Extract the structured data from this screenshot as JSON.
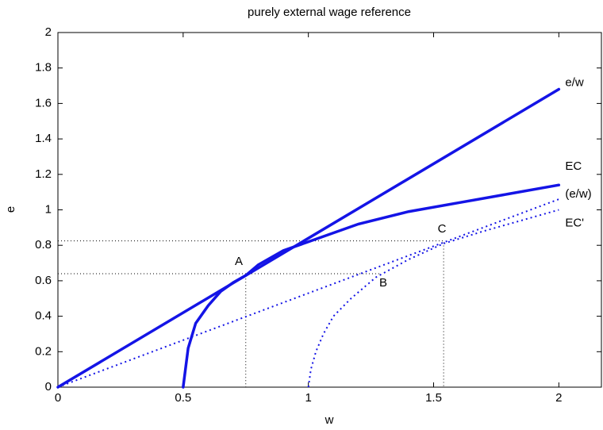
{
  "chart_data": {
    "type": "line",
    "title": "purely external wage reference",
    "xlabel": "w",
    "ylabel": "e",
    "xlim": [
      0,
      2.17
    ],
    "ylim": [
      0,
      2
    ],
    "xticks": [
      0,
      0.5,
      1,
      1.5,
      2
    ],
    "yticks": [
      0,
      0.2,
      0.4,
      0.6,
      0.8,
      1,
      1.2,
      1.4,
      1.6,
      1.8,
      2
    ],
    "grid": false,
    "series": [
      {
        "name": "e/w",
        "color": "#1414e6",
        "style": "solid",
        "x": [
          0,
          2
        ],
        "values": [
          0,
          1.68
        ]
      },
      {
        "name": "EC",
        "color": "#1414e6",
        "style": "solid",
        "x": [
          0.5,
          0.52,
          0.55,
          0.6,
          0.65,
          0.7,
          0.75,
          0.8,
          0.9,
          1.0,
          1.2,
          1.4,
          1.6,
          1.8,
          2.0
        ],
        "values": [
          0,
          0.22,
          0.36,
          0.46,
          0.54,
          0.59,
          0.63,
          0.69,
          0.77,
          0.82,
          0.92,
          0.99,
          1.04,
          1.09,
          1.14
        ]
      },
      {
        "name": "(e/w)",
        "color": "#1414e6",
        "style": "dotted",
        "x": [
          0,
          2
        ],
        "values": [
          0,
          1.06
        ]
      },
      {
        "name": "EC'",
        "color": "#1414e6",
        "style": "dotted",
        "x": [
          1.0,
          1.01,
          1.03,
          1.06,
          1.1,
          1.17,
          1.27,
          1.4,
          1.54,
          1.7,
          1.85,
          2.0
        ],
        "values": [
          0,
          0.1,
          0.2,
          0.3,
          0.4,
          0.5,
          0.62,
          0.72,
          0.81,
          0.88,
          0.94,
          1.0
        ]
      }
    ],
    "guides": [
      {
        "x": [
          0,
          1.54,
          1.54
        ],
        "values": [
          0.825,
          0.825,
          0
        ]
      },
      {
        "x": [
          0,
          1.29
        ],
        "values": [
          0.64,
          0.64
        ]
      },
      {
        "x": [
          0.75,
          0.75
        ],
        "values": [
          0.63,
          0
        ]
      }
    ],
    "annotations": [
      "A",
      "B",
      "C"
    ]
  }
}
